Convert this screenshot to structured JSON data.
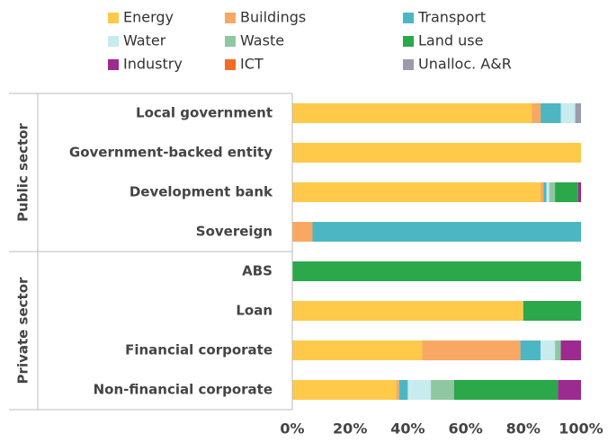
{
  "chart_data": {
    "type": "stacked-barh",
    "categories": [
      "Local government",
      "Government-backed entity",
      "Development bank",
      "Sovereign",
      "ABS",
      "Loan",
      "Financial corporate",
      "Non-financial corporate"
    ],
    "groups": [
      {
        "label": "Public sector",
        "categories": [
          0,
          1,
          2,
          3
        ]
      },
      {
        "label": "Private sector",
        "categories": [
          4,
          5,
          6,
          7
        ]
      }
    ],
    "series": [
      {
        "name": "Energy",
        "color": "#ffc94a",
        "values": [
          83,
          100,
          86,
          0,
          0,
          80,
          45,
          36
        ]
      },
      {
        "name": "Buildings",
        "color": "#f8a863",
        "values": [
          3,
          0,
          1,
          7,
          0,
          0,
          34,
          1
        ]
      },
      {
        "name": "Transport",
        "color": "#4db6c3",
        "values": [
          7,
          0,
          1,
          93,
          0,
          0,
          7,
          3
        ]
      },
      {
        "name": "Water",
        "color": "#c8ebee",
        "values": [
          5,
          0,
          1,
          0,
          0,
          0,
          5,
          8
        ]
      },
      {
        "name": "Waste",
        "color": "#8fc7a0",
        "values": [
          0,
          0,
          2,
          0,
          0,
          0,
          2,
          8
        ]
      },
      {
        "name": "Land use",
        "color": "#2aa84a",
        "values": [
          0,
          0,
          8,
          0,
          100,
          20,
          0,
          36
        ]
      },
      {
        "name": "Industry",
        "color": "#9c2a8f",
        "values": [
          0,
          0,
          1,
          0,
          0,
          0,
          7,
          8
        ]
      },
      {
        "name": "ICT",
        "color": "#f36b25",
        "values": [
          0,
          0,
          0,
          0,
          0,
          0,
          0,
          0
        ]
      },
      {
        "name": "Unalloc. A&R",
        "color": "#9b9baa",
        "values": [
          2,
          0,
          0,
          0,
          0,
          0,
          0,
          0
        ]
      }
    ],
    "xlim": [
      0,
      100
    ],
    "xticks": [
      {
        "value": 0,
        "label": "0%"
      },
      {
        "value": 20,
        "label": "20%"
      },
      {
        "value": 40,
        "label": "40%"
      },
      {
        "value": 60,
        "label": "60%"
      },
      {
        "value": 80,
        "label": "80%"
      },
      {
        "value": 100,
        "label": "100%"
      }
    ]
  }
}
